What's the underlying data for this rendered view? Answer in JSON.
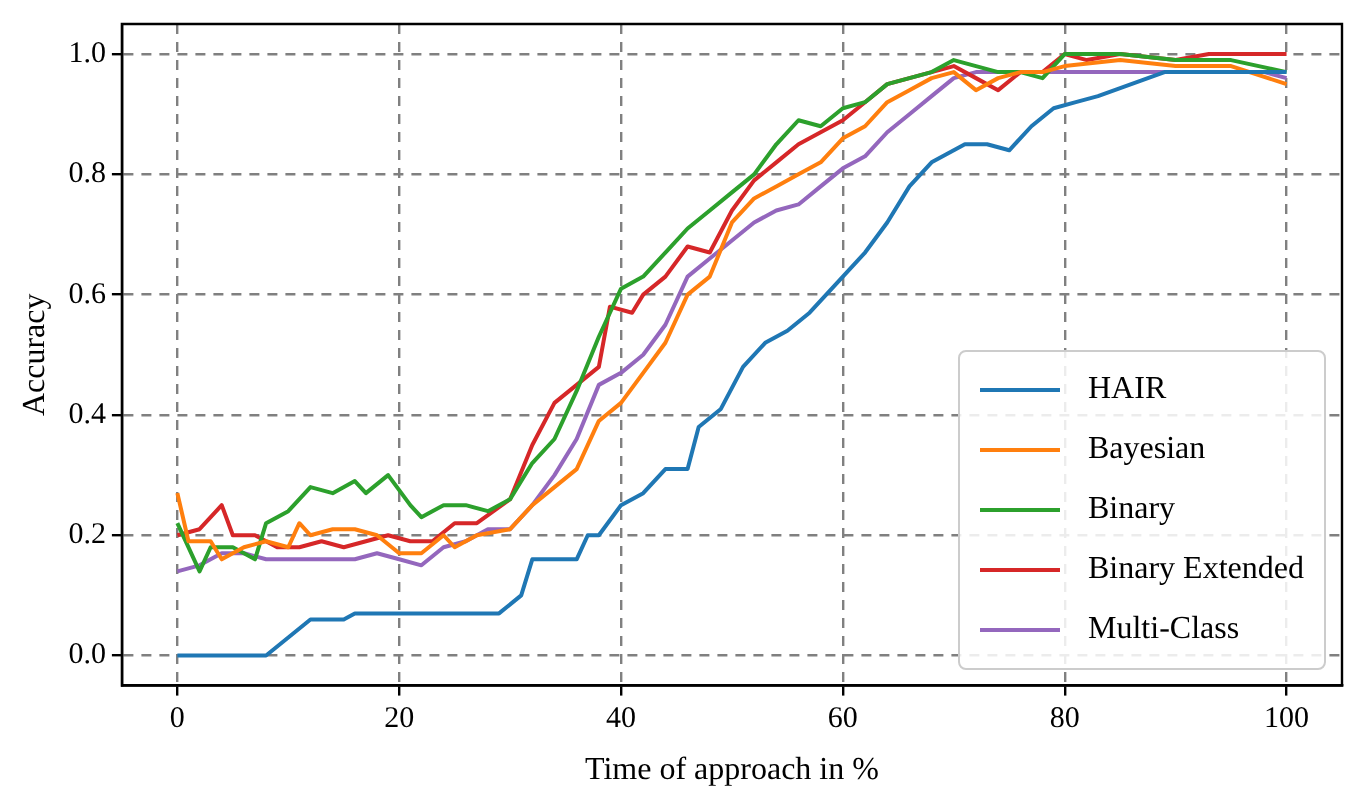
{
  "chart_data": {
    "type": "line",
    "xlabel": "Time of approach in %",
    "ylabel": "Accuracy",
    "xlim": [
      -5,
      105
    ],
    "ylim": [
      -0.05,
      1.05
    ],
    "xticks": [
      0,
      20,
      40,
      60,
      80,
      100
    ],
    "yticks": [
      {
        "value": 0,
        "label": "0.0"
      },
      {
        "value": 0.2,
        "label": "0.2"
      },
      {
        "value": 0.4,
        "label": "0.4"
      },
      {
        "value": 0.6,
        "label": "0.6"
      },
      {
        "value": 0.8,
        "label": "0.8"
      },
      {
        "value": 1,
        "label": "1.0"
      }
    ],
    "grid": true,
    "legend": "bottom right",
    "line_style": "solid",
    "marker": "none",
    "series": [
      {
        "name": "HAIR",
        "color": "#1f77b4",
        "x": [
          0,
          8,
          10,
          12,
          15,
          16,
          29,
          31,
          32,
          36,
          37,
          38,
          40,
          42,
          44,
          46,
          47,
          49,
          51,
          53,
          55,
          57,
          60,
          62,
          64,
          66,
          68,
          71,
          73,
          75,
          77,
          79,
          81,
          83,
          86,
          89,
          100
        ],
        "values": [
          0,
          0,
          0.03,
          0.06,
          0.06,
          0.07,
          0.07,
          0.1,
          0.16,
          0.16,
          0.2,
          0.2,
          0.25,
          0.27,
          0.31,
          0.31,
          0.38,
          0.41,
          0.48,
          0.52,
          0.54,
          0.57,
          0.63,
          0.67,
          0.72,
          0.78,
          0.82,
          0.85,
          0.85,
          0.84,
          0.88,
          0.91,
          0.92,
          0.93,
          0.95,
          0.97,
          0.97
        ]
      },
      {
        "name": "Bayesian",
        "color": "#ff7f0e",
        "x": [
          0,
          1,
          3,
          4,
          6,
          8,
          10,
          11,
          12,
          14,
          16,
          18,
          20,
          22,
          24,
          25,
          27,
          30,
          32,
          34,
          36,
          38,
          40,
          42,
          44,
          46,
          48,
          50,
          52,
          54,
          56,
          58,
          60,
          62,
          64,
          66,
          68,
          70,
          72,
          74,
          76,
          78,
          80,
          85,
          90,
          95,
          100
        ],
        "values": [
          0.27,
          0.19,
          0.19,
          0.16,
          0.18,
          0.19,
          0.18,
          0.22,
          0.2,
          0.21,
          0.21,
          0.2,
          0.17,
          0.17,
          0.2,
          0.18,
          0.2,
          0.21,
          0.25,
          0.28,
          0.31,
          0.39,
          0.42,
          0.47,
          0.52,
          0.6,
          0.63,
          0.72,
          0.76,
          0.78,
          0.8,
          0.82,
          0.86,
          0.88,
          0.92,
          0.94,
          0.96,
          0.97,
          0.94,
          0.96,
          0.97,
          0.97,
          0.98,
          0.99,
          0.98,
          0.98,
          0.95
        ]
      },
      {
        "name": "Binary",
        "color": "#2ca02c",
        "x": [
          0,
          2,
          3,
          5,
          7,
          8,
          10,
          12,
          14,
          16,
          17,
          19,
          21,
          22,
          24,
          26,
          28,
          30,
          32,
          34,
          36,
          38,
          40,
          42,
          44,
          46,
          48,
          50,
          52,
          54,
          56,
          58,
          60,
          62,
          64,
          66,
          68,
          70,
          72,
          74,
          76,
          78,
          80,
          85,
          90,
          95,
          100
        ],
        "values": [
          0.22,
          0.14,
          0.18,
          0.18,
          0.16,
          0.22,
          0.24,
          0.28,
          0.27,
          0.29,
          0.27,
          0.3,
          0.25,
          0.23,
          0.25,
          0.25,
          0.24,
          0.26,
          0.32,
          0.36,
          0.44,
          0.53,
          0.61,
          0.63,
          0.67,
          0.71,
          0.74,
          0.77,
          0.8,
          0.85,
          0.89,
          0.88,
          0.91,
          0.92,
          0.95,
          0.96,
          0.97,
          0.99,
          0.98,
          0.97,
          0.97,
          0.96,
          1.0,
          1.0,
          0.99,
          0.99,
          0.97
        ]
      },
      {
        "name": "Binary Extended",
        "color": "#d62728",
        "x": [
          0,
          2,
          4,
          5,
          7,
          9,
          11,
          13,
          15,
          17,
          19,
          21,
          23,
          25,
          27,
          30,
          32,
          34,
          36,
          38,
          39,
          41,
          42,
          44,
          46,
          48,
          50,
          52,
          54,
          56,
          58,
          60,
          62,
          64,
          66,
          68,
          70,
          72,
          74,
          76,
          78,
          80,
          82,
          85,
          90,
          93,
          100
        ],
        "values": [
          0.2,
          0.21,
          0.25,
          0.2,
          0.2,
          0.18,
          0.18,
          0.19,
          0.18,
          0.19,
          0.2,
          0.19,
          0.19,
          0.22,
          0.22,
          0.26,
          0.35,
          0.42,
          0.45,
          0.48,
          0.58,
          0.57,
          0.6,
          0.63,
          0.68,
          0.67,
          0.74,
          0.79,
          0.82,
          0.85,
          0.87,
          0.89,
          0.92,
          0.95,
          0.96,
          0.97,
          0.98,
          0.96,
          0.94,
          0.97,
          0.97,
          1.0,
          0.99,
          1.0,
          0.99,
          1.0,
          1.0
        ]
      },
      {
        "name": "Multi-Class",
        "color": "#9467bd",
        "x": [
          0,
          2,
          4,
          6,
          8,
          12,
          16,
          18,
          20,
          22,
          24,
          26,
          28,
          30,
          32,
          34,
          36,
          38,
          40,
          42,
          44,
          46,
          48,
          50,
          52,
          54,
          56,
          58,
          60,
          62,
          64,
          66,
          68,
          70,
          72,
          80,
          90,
          98,
          100
        ],
        "values": [
          0.14,
          0.15,
          0.17,
          0.17,
          0.16,
          0.16,
          0.16,
          0.17,
          0.16,
          0.15,
          0.18,
          0.19,
          0.21,
          0.21,
          0.25,
          0.3,
          0.36,
          0.45,
          0.47,
          0.5,
          0.55,
          0.63,
          0.66,
          0.69,
          0.72,
          0.74,
          0.75,
          0.78,
          0.81,
          0.83,
          0.87,
          0.9,
          0.93,
          0.96,
          0.97,
          0.97,
          0.97,
          0.97,
          0.96
        ]
      }
    ]
  }
}
